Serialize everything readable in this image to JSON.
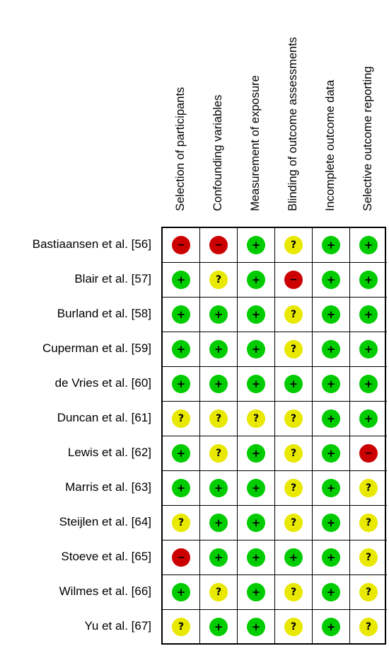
{
  "columns": [
    {
      "label": "Selection of participants"
    },
    {
      "label": "Confounding variables"
    },
    {
      "label": "Measurement of exposure"
    },
    {
      "label": "Blinding of outcome assessments"
    },
    {
      "label": "Incomplete outcome data"
    },
    {
      "label": "Selective outcome reporting"
    }
  ],
  "rows": [
    {
      "label": "Bastiaansen et al. [56]",
      "ratings": [
        "-",
        "-",
        "+",
        "?",
        "+",
        "+"
      ]
    },
    {
      "label": "Blair et al. [57]",
      "ratings": [
        "+",
        "?",
        "+",
        "-",
        "+",
        "+"
      ]
    },
    {
      "label": "Burland et al. [58]",
      "ratings": [
        "+",
        "+",
        "+",
        "?",
        "+",
        "+"
      ]
    },
    {
      "label": "Cuperman et al. [59]",
      "ratings": [
        "+",
        "+",
        "+",
        "?",
        "+",
        "+"
      ]
    },
    {
      "label": "de Vries et al. [60]",
      "ratings": [
        "+",
        "+",
        "+",
        "+",
        "+",
        "+"
      ]
    },
    {
      "label": "Duncan et al. [61]",
      "ratings": [
        "?",
        "?",
        "?",
        "?",
        "+",
        "+"
      ]
    },
    {
      "label": "Lewis et al. [62]",
      "ratings": [
        "+",
        "?",
        "+",
        "?",
        "+",
        "-"
      ]
    },
    {
      "label": "Marris et al. [63]",
      "ratings": [
        "+",
        "+",
        "+",
        "?",
        "+",
        "?"
      ]
    },
    {
      "label": "Steijlen et al. [64]",
      "ratings": [
        "?",
        "+",
        "+",
        "?",
        "+",
        "?"
      ]
    },
    {
      "label": "Stoeve et al. [65]",
      "ratings": [
        "-",
        "+",
        "+",
        "+",
        "+",
        "?"
      ]
    },
    {
      "label": "Wilmes et al. [66]",
      "ratings": [
        "+",
        "?",
        "+",
        "?",
        "+",
        "?"
      ]
    },
    {
      "label": "Yu et al. [67]",
      "ratings": [
        "?",
        "+",
        "+",
        "?",
        "+",
        "?"
      ]
    }
  ],
  "symbols": {
    "+": {
      "glyph": "+",
      "color": "#00cc00",
      "icon": "low-risk-icon"
    },
    "?": {
      "glyph": "?",
      "color": "#e8e800",
      "icon": "unclear-risk-icon"
    },
    "-": {
      "glyph": "−",
      "color": "#cc0000",
      "icon": "high-risk-icon"
    }
  }
}
